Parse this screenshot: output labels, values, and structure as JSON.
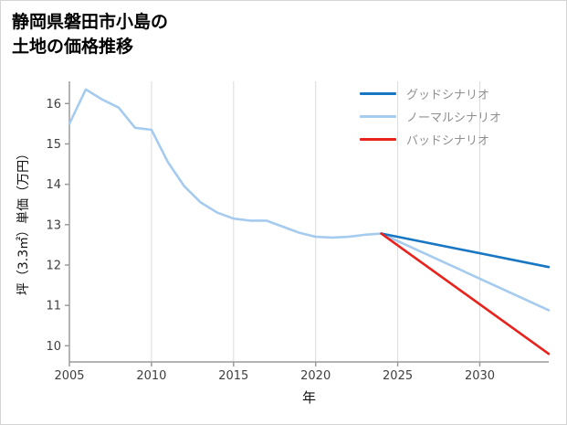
{
  "page": {
    "title_line1": "静岡県磐田市小島の",
    "title_line2": "土地の価格推移"
  },
  "chart_data": {
    "type": "line",
    "title": "静岡県磐田市小島の土地の価格推移",
    "xlabel": "年",
    "ylabel": "坪（3.3㎡）単価（万円）",
    "legend_position": "upper-right",
    "grid": "vertical-only",
    "xlim": [
      2005,
      2034.2
    ],
    "ylim": [
      9.6,
      16.55
    ],
    "xticks": [
      2005,
      2010,
      2015,
      2020,
      2025,
      2030
    ],
    "yticks": [
      10,
      11,
      12,
      13,
      14,
      15,
      16
    ],
    "historical": {
      "color": "#a5cbee",
      "x": [
        2005,
        2006,
        2007,
        2008,
        2009,
        2010,
        2011,
        2012,
        2013,
        2014,
        2015,
        2016,
        2017,
        2018,
        2019,
        2020,
        2021,
        2022,
        2023,
        2024
      ],
      "y": [
        15.5,
        16.35,
        16.1,
        15.9,
        15.4,
        15.35,
        14.55,
        13.95,
        13.55,
        13.3,
        13.15,
        13.1,
        13.1,
        12.95,
        12.8,
        12.7,
        12.68,
        12.7,
        12.75,
        12.78
      ]
    },
    "series": [
      {
        "name": "グッドシナリオ",
        "color": "#1877c2",
        "x": [
          2024,
          2034.2
        ],
        "y": [
          12.78,
          11.95
        ]
      },
      {
        "name": "ノーマルシナリオ",
        "color": "#a5cbee",
        "x": [
          2024,
          2034.2
        ],
        "y": [
          12.78,
          10.88
        ]
      },
      {
        "name": "バッドシナリオ",
        "color": "#e8231d",
        "x": [
          2024,
          2034.2
        ],
        "y": [
          12.78,
          9.8
        ]
      }
    ]
  }
}
